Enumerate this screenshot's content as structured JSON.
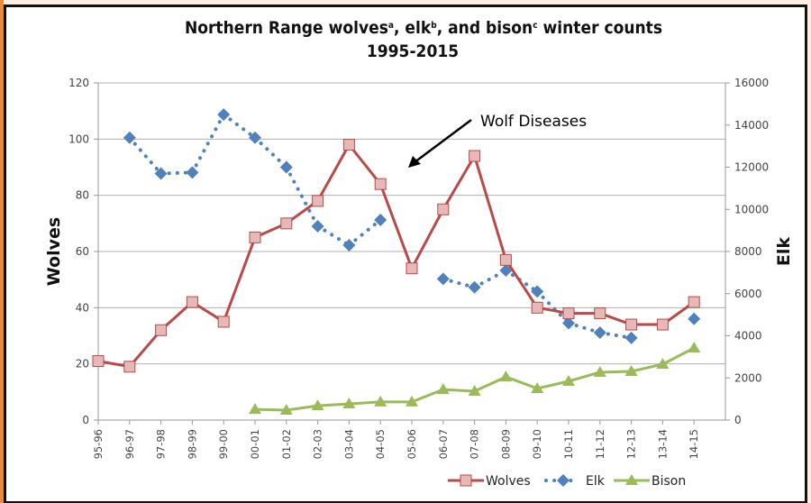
{
  "chart_data": {
    "type": "line",
    "title": "Northern Range wolvesᵃ, elkᵇ, and bisonᶜ winter counts",
    "title_line1_parts": [
      "Northern Range wolves",
      "a",
      ", elk",
      "b",
      ", and bison",
      "c",
      " winter counts"
    ],
    "subtitle": "1995-2015",
    "ylabel_left": "Wolves",
    "ylabel_right": "Elk",
    "ylim_left": [
      0,
      120
    ],
    "ylim_right": [
      0,
      16000
    ],
    "yticks_left": [
      "0",
      "20",
      "40",
      "60",
      "80",
      "100",
      "120"
    ],
    "yticks_right": [
      "0",
      "2000",
      "4000",
      "6000",
      "8000",
      "10000",
      "12000",
      "14000",
      "16000"
    ],
    "grid": true,
    "legend_position": "bottom-right",
    "categories": [
      "95-96",
      "96-97",
      "97-98",
      "98-99",
      "99-00",
      "00-01",
      "01-02",
      "02-03",
      "03-04",
      "04-05",
      "05-06",
      "06-07",
      "07-08",
      "08-09",
      "09-10",
      "10-11",
      "11-12",
      "12-13",
      "13-14",
      "14-15"
    ],
    "series": [
      {
        "name": "Wolves",
        "axis": "left",
        "color": "#b94a48",
        "marker": "square",
        "marker_fill": "#e6b9b8",
        "line": "solid",
        "values": [
          21,
          19,
          32,
          42,
          35,
          65,
          70,
          78,
          98,
          84,
          54,
          75,
          94,
          57,
          40,
          38,
          38,
          34,
          34,
          42
        ]
      },
      {
        "name": "Elk",
        "axis": "right",
        "color": "#4f81bd",
        "marker": "diamond",
        "line": "dotted",
        "values": [
          null,
          13400,
          11700,
          11750,
          14500,
          13400,
          12000,
          9200,
          8300,
          9500,
          null,
          6700,
          6300,
          7100,
          6100,
          4600,
          4150,
          3900,
          null,
          4800
        ]
      },
      {
        "name": "Bison",
        "axis": "right",
        "color": "#9bbb59",
        "marker": "triangle",
        "line": "solid",
        "values": [
          null,
          null,
          null,
          null,
          null,
          510,
          470,
          680,
          770,
          860,
          860,
          1450,
          1370,
          2050,
          1500,
          1840,
          2270,
          2310,
          2650,
          3420
        ]
      }
    ],
    "annotations": [
      {
        "text": "Wolf Diseases",
        "arrow_to_category": "05-06"
      }
    ]
  }
}
